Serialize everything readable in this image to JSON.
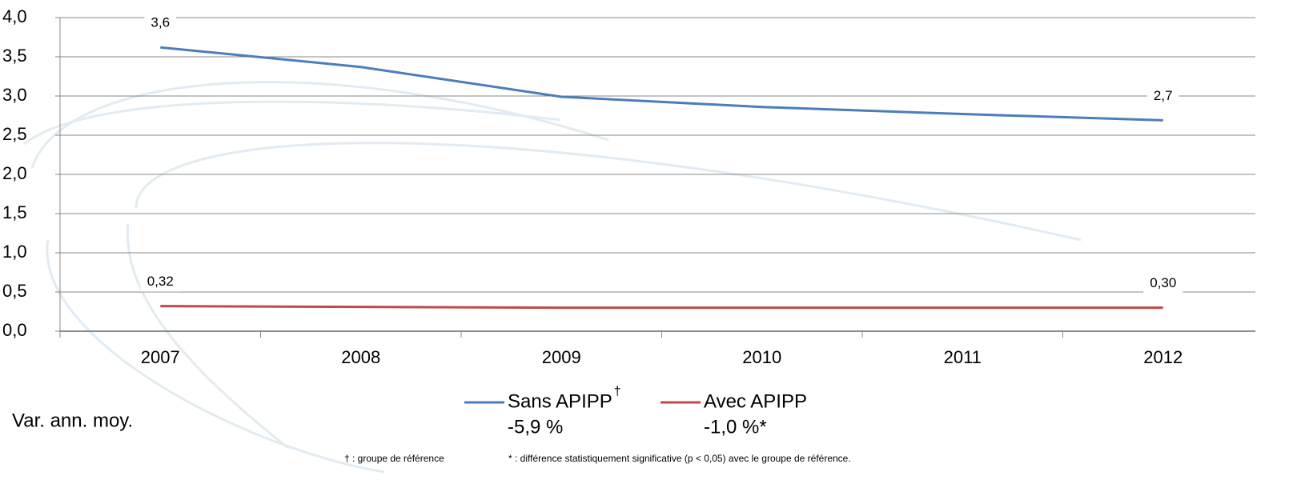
{
  "chart_data": {
    "type": "line",
    "categories": [
      "2007",
      "2008",
      "2009",
      "2010",
      "2011",
      "2012"
    ],
    "series": [
      {
        "name": "Sans APIPP",
        "name_mark": "†",
        "change": "-5,9 %",
        "color": "#4a7ebb",
        "values": [
          3.62,
          3.37,
          2.99,
          2.86,
          2.77,
          2.69
        ],
        "value_labels": [
          "3,6",
          null,
          null,
          null,
          null,
          "2,7"
        ]
      },
      {
        "name": "Avec APIPP",
        "change": "-1,0 %*",
        "color": "#be4b48",
        "values": [
          0.32,
          0.31,
          0.3,
          0.3,
          0.3,
          0.3
        ],
        "value_labels": [
          "0,32",
          null,
          null,
          null,
          null,
          "0,30"
        ]
      }
    ],
    "ylim": [
      0,
      4
    ],
    "yticks": [
      {
        "value": 0,
        "label": "0,0"
      },
      {
        "value": 0.5,
        "label": "0,5"
      },
      {
        "value": 1,
        "label": "1,0"
      },
      {
        "value": 1.5,
        "label": "1,5"
      },
      {
        "value": 2,
        "label": "2,0"
      },
      {
        "value": 2.5,
        "label": "2,5"
      },
      {
        "value": 3,
        "label": "3,0"
      },
      {
        "value": 3.5,
        "label": "3,5"
      },
      {
        "value": 4,
        "label": "4,0"
      }
    ],
    "grid": true,
    "change_label": "Var. ann. moy.",
    "footnotes": [
      "† : groupe de référence",
      "* : différence statistiquement significative (p < 0,05) avec le groupe de référence."
    ]
  }
}
